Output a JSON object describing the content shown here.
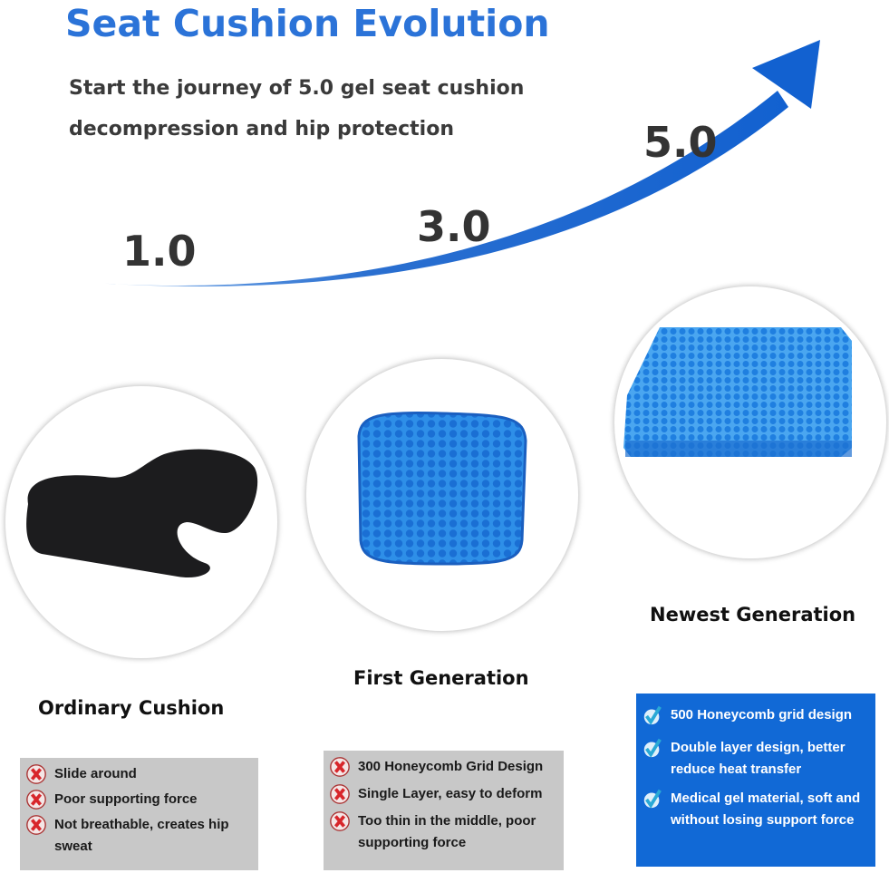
{
  "header": {
    "title": "Seat Cushion Evolution",
    "subtitle_line1": "Start the journey of 5.0 gel seat cushion",
    "subtitle_line2": "decompression and hip protection"
  },
  "versions": [
    "1.0",
    "3.0",
    "5.0"
  ],
  "colors": {
    "accent": "#2b73d8",
    "box_gray": "#c8c8c8",
    "box_blue": "#1169d6",
    "cross_red": "#d8262b"
  },
  "products": [
    {
      "caption": "Ordinary Cushion",
      "icon": "x-cross-icon",
      "points": [
        "Slide around",
        "Poor supporting force",
        "Not breathable, creates hip sweat"
      ]
    },
    {
      "caption": "First Generation",
      "icon": "x-cross-icon",
      "points": [
        "300 Honeycomb Grid Design",
        "Single Layer, easy to deform",
        "Too thin in the middle, poor supporting force"
      ]
    },
    {
      "caption": "Newest Generation",
      "icon": "checkmark-icon",
      "points": [
        "500 Honeycomb grid design",
        "Double layer design, better reduce heat transfer",
        "Medical gel material, soft and without losing support force"
      ]
    }
  ]
}
